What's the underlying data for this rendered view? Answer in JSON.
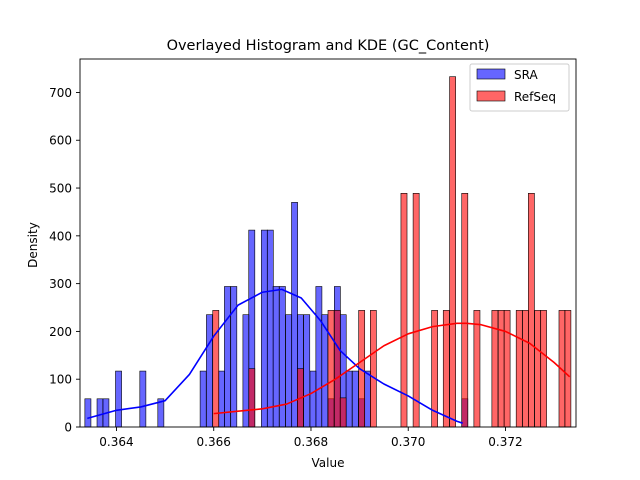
{
  "chart_data": {
    "type": "histogram",
    "title": "Overlayed Histogram and KDE (GC_Content)",
    "xlabel": "Value",
    "ylabel": "Density",
    "xlim": [
      0.36325,
      0.37345
    ],
    "ylim": [
      0,
      770
    ],
    "xticks": [
      0.364,
      0.366,
      0.368,
      0.37,
      0.372
    ],
    "xtick_labels": [
      "0.364",
      "0.366",
      "0.368",
      "0.370",
      "0.372"
    ],
    "yticks": [
      0,
      100,
      200,
      300,
      400,
      500,
      600,
      700
    ],
    "ytick_labels": [
      "0",
      "100",
      "200",
      "300",
      "400",
      "500",
      "600",
      "700"
    ],
    "legend_position": "top-right",
    "series": [
      {
        "name": "SRA",
        "color": "#0000ff",
        "bin_width": 0.000125,
        "bins": [
          [
            0.36335,
            59
          ],
          [
            0.3636,
            59
          ],
          [
            0.36372,
            59
          ],
          [
            0.36398,
            117
          ],
          [
            0.36448,
            117
          ],
          [
            0.36485,
            59
          ],
          [
            0.36572,
            117
          ],
          [
            0.36585,
            235
          ],
          [
            0.3661,
            117
          ],
          [
            0.36622,
            294
          ],
          [
            0.36635,
            294
          ],
          [
            0.3666,
            235
          ],
          [
            0.36672,
            412
          ],
          [
            0.36698,
            412
          ],
          [
            0.3671,
            412
          ],
          [
            0.36722,
            294
          ],
          [
            0.36735,
            294
          ],
          [
            0.36748,
            235
          ],
          [
            0.3676,
            470
          ],
          [
            0.36772,
            235
          ],
          [
            0.36785,
            235
          ],
          [
            0.36798,
            117
          ],
          [
            0.3681,
            294
          ],
          [
            0.36822,
            235
          ],
          [
            0.36835,
            59
          ],
          [
            0.36848,
            294
          ],
          [
            0.3686,
            235
          ],
          [
            0.36872,
            117
          ],
          [
            0.36885,
            117
          ],
          [
            0.36898,
            59
          ],
          [
            0.3691,
            117
          ],
          [
            0.3711,
            59
          ]
        ],
        "kde": {
          "x": [
            0.3634,
            0.364,
            0.3645,
            0.365,
            0.3655,
            0.366,
            0.3665,
            0.367,
            0.3674,
            0.3678,
            0.3682,
            0.3686,
            0.369,
            0.3695,
            0.37,
            0.3705,
            0.371,
            0.37112
          ],
          "y": [
            18,
            35,
            42,
            55,
            110,
            190,
            255,
            282,
            288,
            270,
            222,
            160,
            122,
            90,
            65,
            35,
            12,
            8
          ]
        }
      },
      {
        "name": "RefSeq",
        "color": "#ff0000",
        "bin_width": 0.000125,
        "bins": [
          [
            0.36598,
            244
          ],
          [
            0.36672,
            122
          ],
          [
            0.36772,
            122
          ],
          [
            0.36835,
            244
          ],
          [
            0.36848,
            244
          ],
          [
            0.3686,
            61
          ],
          [
            0.36898,
            244
          ],
          [
            0.36922,
            244
          ],
          [
            0.36985,
            489
          ],
          [
            0.3701,
            489
          ],
          [
            0.37048,
            244
          ],
          [
            0.37072,
            244
          ],
          [
            0.37085,
            733
          ],
          [
            0.3711,
            489
          ],
          [
            0.37135,
            244
          ],
          [
            0.37172,
            244
          ],
          [
            0.37185,
            244
          ],
          [
            0.37197,
            244
          ],
          [
            0.37222,
            244
          ],
          [
            0.37235,
            244
          ],
          [
            0.37247,
            489
          ],
          [
            0.3726,
            244
          ],
          [
            0.37272,
            244
          ],
          [
            0.3731,
            244
          ],
          [
            0.37322,
            244
          ]
        ],
        "kde": {
          "x": [
            0.366,
            0.3665,
            0.367,
            0.3675,
            0.368,
            0.3685,
            0.369,
            0.3695,
            0.37,
            0.3705,
            0.371,
            0.3712,
            0.3715,
            0.372,
            0.3725,
            0.373,
            0.37332
          ],
          "y": [
            28,
            33,
            38,
            48,
            70,
            100,
            135,
            170,
            195,
            210,
            217,
            217,
            214,
            200,
            175,
            135,
            105
          ]
        }
      }
    ]
  }
}
